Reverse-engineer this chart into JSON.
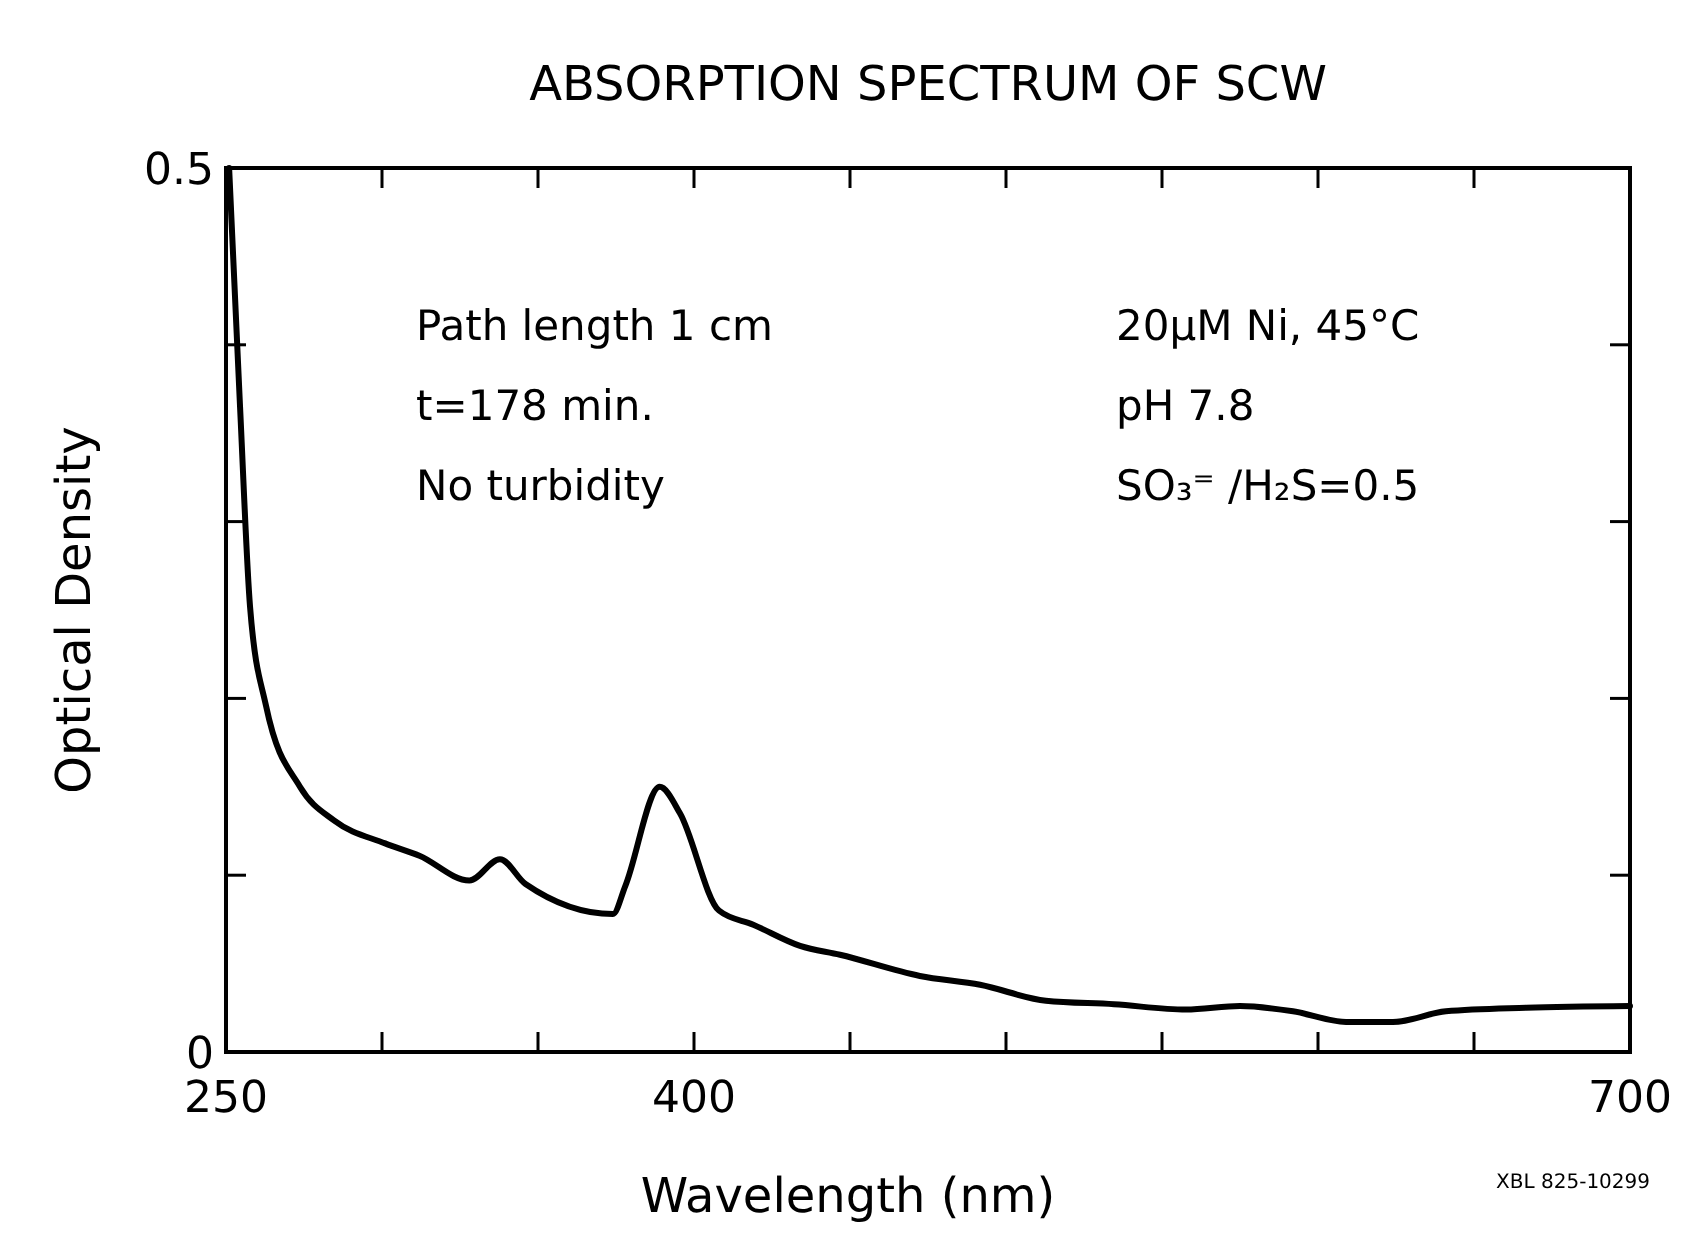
{
  "chart_data": {
    "type": "line",
    "title": "ABSORPTION SPECTRUM OF SCW",
    "xlabel": "Wavelength (nm)",
    "ylabel": "Optical Density",
    "xlim": [
      250,
      700
    ],
    "ylim": [
      0,
      0.5
    ],
    "xticks": [
      250,
      {
        "value": 300,
        "label": null
      },
      {
        "value": 350,
        "label": null
      },
      400,
      {
        "value": 450,
        "label": null
      },
      {
        "value": 500,
        "label": null
      },
      {
        "value": 550,
        "label": null
      },
      {
        "value": 600,
        "label": null
      },
      {
        "value": 650,
        "label": null
      },
      700
    ],
    "yticks": [
      0,
      {
        "value": 0.1,
        "label": null
      },
      {
        "value": 0.2,
        "label": null
      },
      {
        "value": 0.3,
        "label": null
      },
      {
        "value": 0.4,
        "label": null
      },
      0.5
    ],
    "grid": false,
    "marker": "none",
    "line_style": "solid",
    "annotations": [
      "Path length 1 cm",
      "t=178 min.",
      "No turbidity",
      "20µM Ni, 45°C",
      "pH 7.8",
      "SO₃⁼ /H₂S=0.5",
      "XBL 825-10299"
    ],
    "series": [
      {
        "color": "#000000",
        "x": [
          251,
          254.5,
          257.7,
          262.8,
          273.7,
          284.6,
          301,
          312,
          328,
          337.8,
          346,
          374,
          378,
          389,
          395.5,
          408,
          419,
          434,
          446.8,
          472.4,
          491.7,
          512.8,
          534.6,
          557.7,
          575,
          592,
          609,
          624,
          641,
          666.7,
          700
        ],
        "values": [
          0.5,
          0.365,
          0.252,
          0.196,
          0.15,
          0.131,
          0.118,
          0.111,
          0.097,
          0.109,
          0.095,
          0.078,
          0.094,
          0.15,
          0.135,
          0.08,
          0.072,
          0.06,
          0.055,
          0.043,
          0.038,
          0.029,
          0.027,
          0.024,
          0.026,
          0.023,
          0.017,
          0.017,
          0.023,
          0.025,
          0.026
        ]
      }
    ]
  }
}
